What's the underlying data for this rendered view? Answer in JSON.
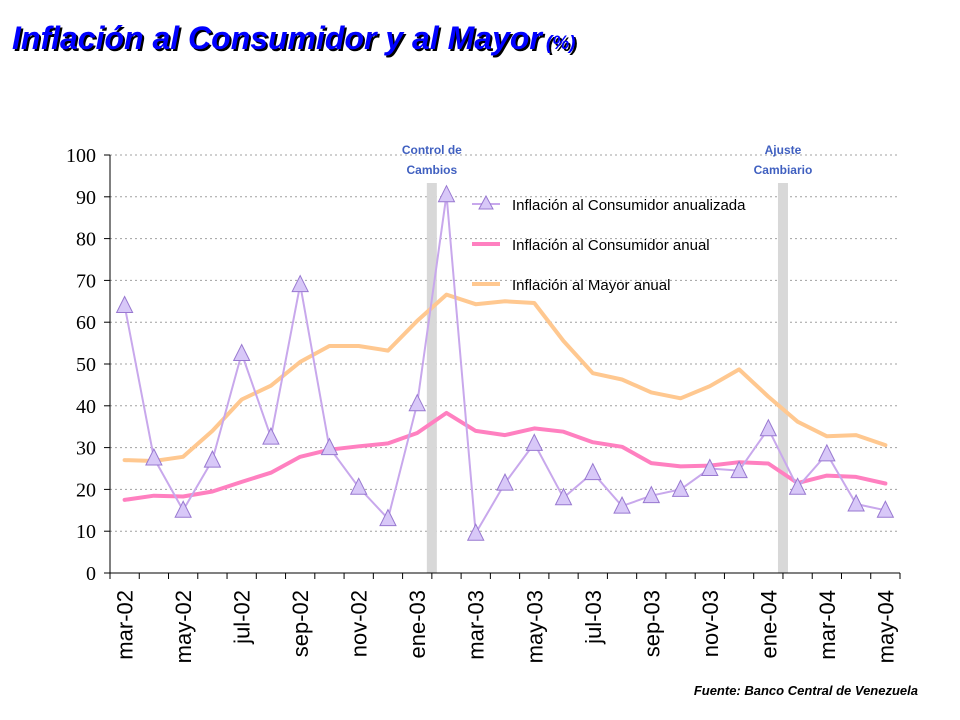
{
  "title": "Inflación al Consumidor y al Mayor",
  "title_unit": "(%)",
  "source": "Fuente: Banco Central de Venezuela",
  "chart_data": {
    "type": "line",
    "categories": [
      "mar-02",
      "apr-02",
      "may-02",
      "jun-02",
      "jul-02",
      "aug-02",
      "sep-02",
      "oct-02",
      "nov-02",
      "dec-02",
      "ene-03",
      "feb-03",
      "mar-03",
      "apr-03",
      "may-03",
      "jun-03",
      "jul-03",
      "aug-03",
      "sep-03",
      "oct-03",
      "nov-03",
      "dec-03",
      "ene-04",
      "feb-04",
      "mar-04",
      "apr-04",
      "may-04"
    ],
    "tick_labels": [
      "mar-02",
      "may-02",
      "jul-02",
      "sep-02",
      "nov-02",
      "ene-03",
      "mar-03",
      "may-03",
      "jul-03",
      "sep-03",
      "nov-03",
      "ene-04",
      "mar-04",
      "may-04"
    ],
    "yticks": [
      "0",
      "10",
      "20",
      "30",
      "40",
      "50",
      "60",
      "70",
      "80",
      "90",
      "100"
    ],
    "ylim": [
      0,
      100
    ],
    "grid": true,
    "legend_position": "top-center",
    "series": [
      {
        "name": "Inflación al Consumidor anualizada",
        "color": "#c8a8ec",
        "marker": "triangle",
        "values": [
          64,
          27.5,
          15,
          27,
          52.5,
          32.5,
          69,
          30,
          20.5,
          13,
          40.5,
          90.5,
          9.5,
          21.5,
          31,
          18,
          24,
          16,
          18.5,
          20,
          25,
          24.5,
          34.5,
          20.5,
          28.5,
          16.5,
          15
        ]
      },
      {
        "name": "Inflación al Consumidor anual",
        "color": "#ff80c0",
        "marker": "none",
        "values": [
          17.5,
          18.5,
          18.3,
          19.5,
          21.8,
          24,
          27.8,
          29.5,
          30.3,
          31,
          33.5,
          38.3,
          34,
          33,
          34.6,
          33.8,
          31.3,
          30.2,
          26.3,
          25.5,
          25.7,
          26.5,
          26.2,
          21.5,
          23.3,
          23,
          21.4
        ]
      },
      {
        "name": "Inflación al Mayor anual",
        "color": "#ffc890",
        "marker": "none",
        "values": [
          27,
          26.8,
          27.8,
          34,
          41.5,
          44.8,
          50.5,
          54.3,
          54.3,
          53.2,
          60.3,
          66.6,
          64.3,
          65,
          64.6,
          55.5,
          47.8,
          46.3,
          43.2,
          41.8,
          44.7,
          48.7,
          42.2,
          36.2,
          32.7,
          33,
          30.6
        ]
      }
    ],
    "event_markers": [
      {
        "label_line1": "Control de",
        "label_line2": "Cambios",
        "at_category": "feb-03"
      },
      {
        "label_line1": "Ajuste",
        "label_line2": "Cambiario",
        "at_category": "feb-04"
      }
    ],
    "annotation_color": "#4060c0",
    "event_bar_color": "#d8d8d8"
  }
}
